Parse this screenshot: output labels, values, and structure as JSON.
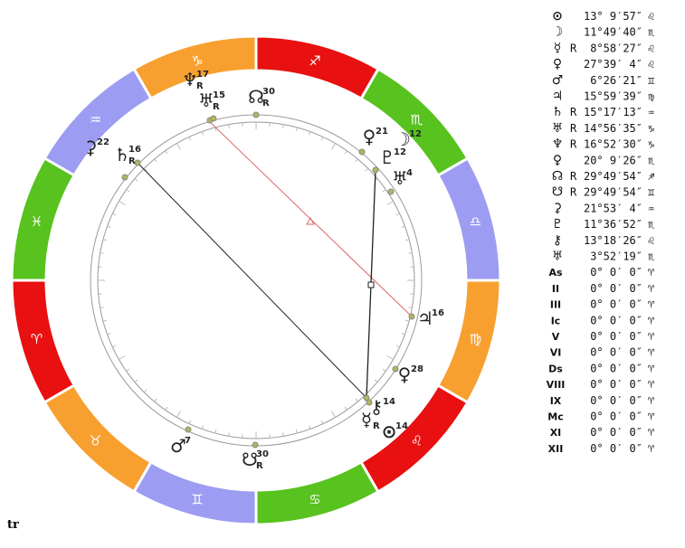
{
  "wheel": {
    "signs": [
      "♈",
      "♉",
      "♊",
      "♋",
      "♌",
      "♍",
      "♎",
      "♏",
      "♐",
      "♑",
      "♒",
      "♓"
    ],
    "bodies": [
      {
        "glyph": "♆",
        "degree": 17,
        "retro": "R"
      },
      {
        "glyph": "♅",
        "degree": 15,
        "retro": "R"
      },
      {
        "glyph": "☊",
        "degree": 30,
        "retro": "R"
      },
      {
        "glyph": "⚳",
        "degree": 22
      },
      {
        "glyph": "♄",
        "degree": 16,
        "retro": "R"
      },
      {
        "glyph": "♀",
        "degree": 21
      },
      {
        "glyph": "☽",
        "degree": 12
      },
      {
        "glyph": "♇",
        "degree": 12
      },
      {
        "glyph": "♅",
        "degree": 4
      },
      {
        "glyph": "♃",
        "degree": 16
      },
      {
        "glyph": "♀",
        "degree": 28
      },
      {
        "glyph": "⚷",
        "degree": 14
      },
      {
        "glyph": "☿",
        "retro": "R"
      },
      {
        "glyph": "⊙",
        "degree": 14
      },
      {
        "glyph": "♂",
        "degree": 7
      },
      {
        "glyph": "☋",
        "degree": 30,
        "retro": "R"
      }
    ]
  },
  "table": {
    "rows": [
      {
        "symbol": "⊙",
        "position": "13° 9′57″",
        "sign": "♌"
      },
      {
        "symbol": "☽",
        "position": "11°49′40″",
        "sign": "♏"
      },
      {
        "symbol": "☿",
        "retro": "R",
        "position": "8°58′27″",
        "sign": "♌"
      },
      {
        "symbol": "♀",
        "position": "27°39′ 4″",
        "sign": "♌"
      },
      {
        "symbol": "♂",
        "position": "6°26′21″",
        "sign": "♊"
      },
      {
        "symbol": "♃",
        "position": "15°59′39″",
        "sign": "♍"
      },
      {
        "symbol": "♄",
        "retro": "R",
        "position": "15°17′13″",
        "sign": "♒"
      },
      {
        "symbol": "♅",
        "retro": "R",
        "position": "14°56′35″",
        "sign": "♑"
      },
      {
        "symbol": "♆",
        "retro": "R",
        "position": "16°52′30″",
        "sign": "♑"
      },
      {
        "symbol": "♀",
        "position": "20° 9′26″",
        "sign": "♏"
      },
      {
        "symbol": "☊",
        "retro": "R",
        "position": "29°49′54″",
        "sign": "♐"
      },
      {
        "symbol": "☋",
        "retro": "R",
        "position": "29°49′54″",
        "sign": "♊"
      },
      {
        "symbol": "⚳",
        "position": "21°53′ 4″",
        "sign": "♒"
      },
      {
        "symbol": "♇",
        "position": "11°36′52″",
        "sign": "♏"
      },
      {
        "symbol": "⚷",
        "position": "13°18′26″",
        "sign": "♌"
      },
      {
        "symbol": "♅",
        "position": "3°52′19″",
        "sign": "♏"
      },
      {
        "symbol": "As",
        "position": "0° 0′ 0″",
        "sign": "♈"
      },
      {
        "symbol": "II",
        "position": "0° 0′ 0″",
        "sign": "♈"
      },
      {
        "symbol": "III",
        "position": "0° 0′ 0″",
        "sign": "♈"
      },
      {
        "symbol": "Ic",
        "position": "0° 0′ 0″",
        "sign": "♈"
      },
      {
        "symbol": "V",
        "position": "0° 0′ 0″",
        "sign": "♈"
      },
      {
        "symbol": "VI",
        "position": "0° 0′ 0″",
        "sign": "♈"
      },
      {
        "symbol": "Ds",
        "position": "0° 0′ 0″",
        "sign": "♈"
      },
      {
        "symbol": "VIII",
        "position": "0° 0′ 0″",
        "sign": "♈"
      },
      {
        "symbol": "IX",
        "position": "0° 0′ 0″",
        "sign": "♈"
      },
      {
        "symbol": "Mc",
        "position": "0° 0′ 0″",
        "sign": "♈"
      },
      {
        "symbol": "XI",
        "position": "0° 0′ 0″",
        "sign": "♈"
      },
      {
        "symbol": "XII",
        "position": "0° 0′ 0″",
        "sign": "♈"
      }
    ]
  },
  "footer": "tr"
}
